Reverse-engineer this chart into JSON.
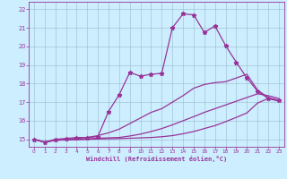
{
  "xlabel": "Windchill (Refroidissement éolien,°C)",
  "bg_color": "#cceeff",
  "line_color": "#993399",
  "grid_color": "#99bbcc",
  "xlim": [
    -0.5,
    23.5
  ],
  "ylim": [
    14.6,
    22.4
  ],
  "xticks": [
    0,
    1,
    2,
    3,
    4,
    5,
    6,
    7,
    8,
    9,
    10,
    11,
    12,
    13,
    14,
    15,
    16,
    17,
    18,
    19,
    20,
    21,
    22,
    23
  ],
  "yticks": [
    15,
    16,
    17,
    18,
    19,
    20,
    21,
    22
  ],
  "series": [
    {
      "x": [
        0,
        1,
        2,
        3,
        4,
        5,
        6,
        7,
        8,
        9,
        10,
        11,
        12,
        13,
        14,
        15,
        16,
        17,
        18,
        19,
        20,
        21,
        22,
        23
      ],
      "y": [
        15.0,
        14.85,
        15.0,
        15.05,
        15.1,
        15.1,
        15.15,
        16.5,
        17.4,
        18.6,
        18.4,
        18.5,
        18.55,
        21.0,
        21.75,
        21.7,
        20.75,
        21.1,
        20.05,
        19.15,
        18.3,
        17.6,
        17.2,
        17.1
      ],
      "marker": "*",
      "markersize": 3.5,
      "linewidth": 0.9
    },
    {
      "x": [
        0,
        1,
        2,
        3,
        4,
        5,
        6,
        7,
        8,
        9,
        10,
        11,
        12,
        13,
        14,
        15,
        16,
        17,
        18,
        19,
        20,
        21,
        22,
        23
      ],
      "y": [
        15.0,
        14.85,
        14.95,
        15.0,
        15.05,
        15.1,
        15.2,
        15.35,
        15.55,
        15.85,
        16.15,
        16.45,
        16.65,
        17.0,
        17.35,
        17.75,
        17.95,
        18.05,
        18.1,
        18.3,
        18.5,
        17.65,
        17.25,
        17.1
      ],
      "marker": null,
      "markersize": 0,
      "linewidth": 0.9
    },
    {
      "x": [
        0,
        1,
        2,
        3,
        4,
        5,
        6,
        7,
        8,
        9,
        10,
        11,
        12,
        13,
        14,
        15,
        16,
        17,
        18,
        19,
        20,
        21,
        22,
        23
      ],
      "y": [
        15.0,
        14.85,
        14.95,
        14.98,
        15.0,
        15.02,
        15.06,
        15.08,
        15.1,
        15.18,
        15.28,
        15.42,
        15.58,
        15.78,
        16.0,
        16.22,
        16.45,
        16.65,
        16.85,
        17.05,
        17.25,
        17.45,
        17.35,
        17.2
      ],
      "marker": null,
      "markersize": 0,
      "linewidth": 0.9
    },
    {
      "x": [
        0,
        1,
        2,
        3,
        4,
        5,
        6,
        7,
        8,
        9,
        10,
        11,
        12,
        13,
        14,
        15,
        16,
        17,
        18,
        19,
        20,
        21,
        22,
        23
      ],
      "y": [
        15.0,
        14.85,
        14.95,
        14.97,
        14.98,
        15.0,
        15.02,
        15.03,
        15.04,
        15.06,
        15.08,
        15.1,
        15.14,
        15.2,
        15.3,
        15.42,
        15.58,
        15.74,
        15.95,
        16.18,
        16.42,
        16.95,
        17.2,
        17.05
      ],
      "marker": null,
      "markersize": 0,
      "linewidth": 0.9
    }
  ]
}
